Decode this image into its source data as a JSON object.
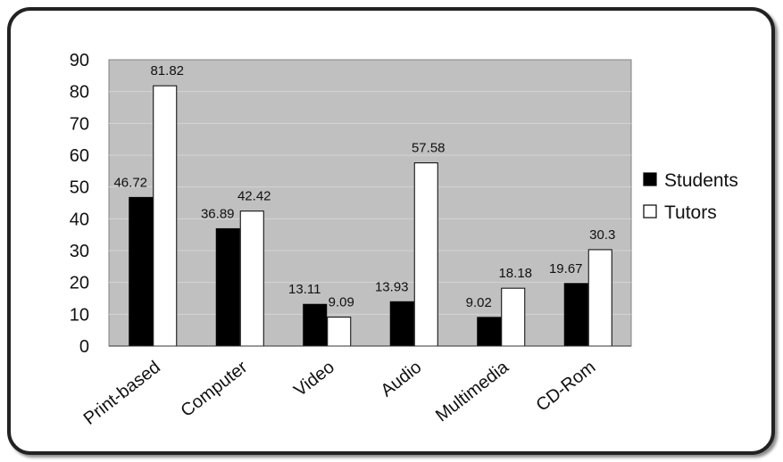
{
  "chart_data": {
    "type": "bar",
    "categories": [
      "Print-based",
      "Computer",
      "Video",
      "Audio",
      "Multimedia",
      "CD-Rom"
    ],
    "series": [
      {
        "name": "Students",
        "values": [
          46.72,
          36.89,
          13.11,
          13.93,
          9.02,
          19.67
        ],
        "color": "#000000"
      },
      {
        "name": "Tutors",
        "values": [
          81.82,
          42.42,
          9.09,
          57.58,
          18.18,
          30.3
        ],
        "color": "#ffffff"
      }
    ],
    "data_labels": {
      "Students": [
        "46.72",
        "36.89",
        "13.11",
        "13.93",
        "9.02",
        "19.67"
      ],
      "Tutors": [
        "81.82",
        "42.42",
        "9.09",
        "57.58",
        "18.18",
        "30.3"
      ]
    },
    "ylim": [
      0,
      90
    ],
    "yticks": [
      0,
      10,
      20,
      30,
      40,
      50,
      60,
      70,
      80,
      90
    ],
    "grid": true,
    "legend_position": "right",
    "plot_background": "#c0c0c0"
  }
}
